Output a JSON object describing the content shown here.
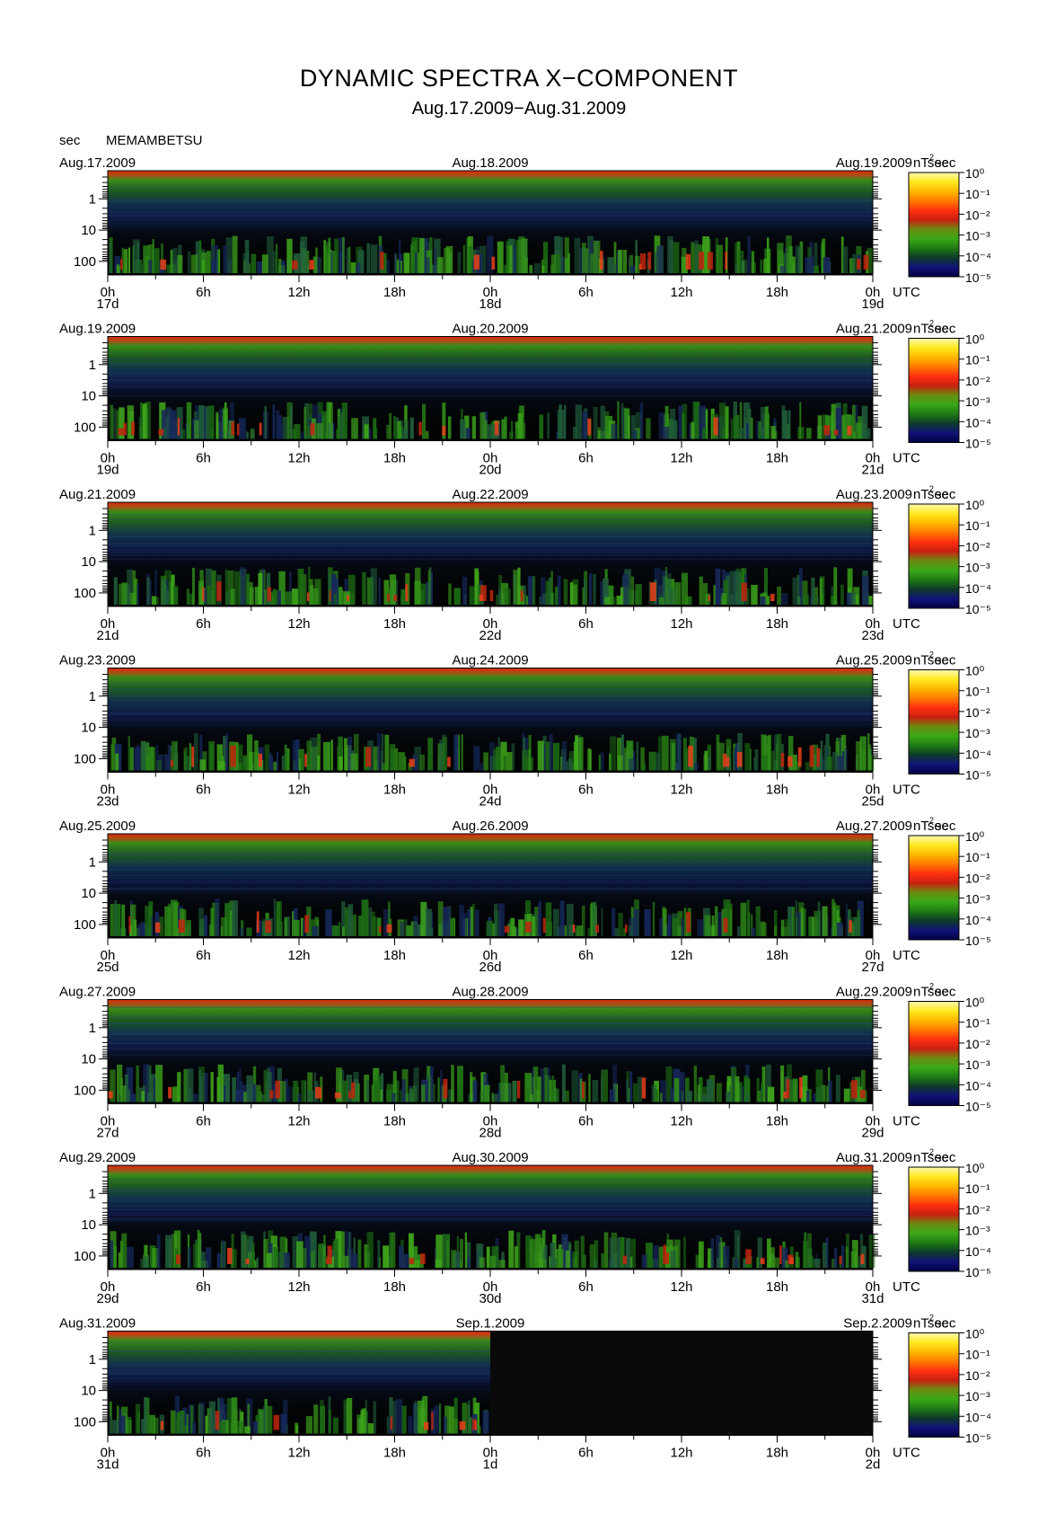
{
  "header": {
    "title": "DYNAMIC SPECTRA X−COMPONENT",
    "date_range": "Aug.17.2009−Aug.31.2009",
    "unit": "sec",
    "station": "MEMAMBETSU"
  },
  "chart_data": {
    "type": "heatmap",
    "y_axis": {
      "unit": "sec",
      "ticks": [
        "1",
        "10",
        "100"
      ],
      "scale": "log",
      "inverted": true
    },
    "x_axis": {
      "ticks": [
        "0h",
        "6h",
        "12h",
        "18h",
        "0h",
        "6h",
        "12h",
        "18h",
        "0h"
      ],
      "suffix": "UTC"
    },
    "colorbar": {
      "unit": "nT²sec",
      "scale": "log",
      "ticks": [
        "10⁰",
        "10⁻¹",
        "10⁻²",
        "10⁻³",
        "10⁻⁴",
        "10⁻⁵"
      ],
      "colors": [
        "#000040",
        "#12127a",
        "#0d3a2a",
        "#1f7a14",
        "#3aa818",
        "#6a8c10",
        "#c82010",
        "#ff3010",
        "#ff7a00",
        "#ffb800",
        "#ffea20",
        "#fff8b0"
      ]
    },
    "panels": [
      {
        "left_date": "Aug.17.2009",
        "center_date": "Aug.18.2009",
        "right_date": "Aug.19.2009",
        "day_labels": [
          "17d",
          "18d",
          "19d"
        ]
      },
      {
        "left_date": "Aug.19.2009",
        "center_date": "Aug.20.2009",
        "right_date": "Aug.21.2009",
        "day_labels": [
          "19d",
          "20d",
          "21d"
        ]
      },
      {
        "left_date": "Aug.21.2009",
        "center_date": "Aug.22.2009",
        "right_date": "Aug.23.2009",
        "day_labels": [
          "21d",
          "22d",
          "23d"
        ]
      },
      {
        "left_date": "Aug.23.2009",
        "center_date": "Aug.24.2009",
        "right_date": "Aug.25.2009",
        "day_labels": [
          "23d",
          "24d",
          "25d"
        ]
      },
      {
        "left_date": "Aug.25.2009",
        "center_date": "Aug.26.2009",
        "right_date": "Aug.27.2009",
        "day_labels": [
          "25d",
          "26d",
          "27d"
        ]
      },
      {
        "left_date": "Aug.27.2009",
        "center_date": "Aug.28.2009",
        "right_date": "Aug.29.2009",
        "day_labels": [
          "27d",
          "28d",
          "29d"
        ]
      },
      {
        "left_date": "Aug.29.2009",
        "center_date": "Aug.30.2009",
        "right_date": "Aug.31.2009",
        "day_labels": [
          "29d",
          "30d",
          "31d"
        ]
      },
      {
        "left_date": "Aug.31.2009",
        "center_date": "Sep.1.2009",
        "right_date": "Sep.2.2009",
        "day_labels": [
          "31d",
          "1d",
          "2d"
        ],
        "data_ends_at": "24h"
      }
    ]
  }
}
